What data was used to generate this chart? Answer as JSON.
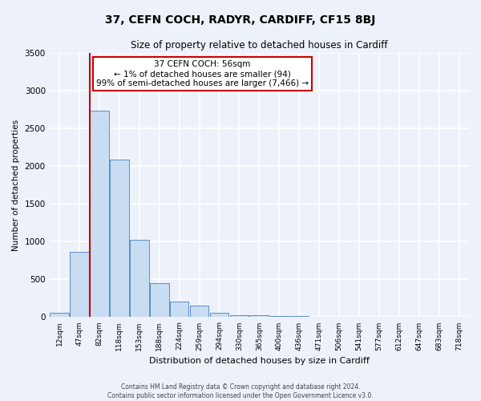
{
  "title": "37, CEFN COCH, RADYR, CARDIFF, CF15 8BJ",
  "subtitle": "Size of property relative to detached houses in Cardiff",
  "xlabel": "Distribution of detached houses by size in Cardiff",
  "ylabel": "Number of detached properties",
  "bin_labels": [
    "12sqm",
    "47sqm",
    "82sqm",
    "118sqm",
    "153sqm",
    "188sqm",
    "224sqm",
    "259sqm",
    "294sqm",
    "330sqm",
    "365sqm",
    "400sqm",
    "436sqm",
    "471sqm",
    "506sqm",
    "541sqm",
    "577sqm",
    "612sqm",
    "647sqm",
    "683sqm",
    "718sqm"
  ],
  "bar_heights": [
    60,
    860,
    2730,
    2080,
    1020,
    455,
    205,
    148,
    60,
    30,
    28,
    20,
    15,
    5,
    0,
    0,
    0,
    0,
    0,
    0,
    0
  ],
  "bar_color": "#c9ddf2",
  "bar_edge_color": "#5b8ec9",
  "annotation_line1": "37 CEFN COCH: 56sqm",
  "annotation_line2": "← 1% of detached houses are smaller (94)",
  "annotation_line3": "99% of semi-detached houses are larger (7,466) →",
  "annotation_box_color": "#ffffff",
  "annotation_box_edge": "#cc0000",
  "vline_color": "#cc0000",
  "vline_x": 1.5,
  "ylim": [
    0,
    3500
  ],
  "yticks": [
    0,
    500,
    1000,
    1500,
    2000,
    2500,
    3000,
    3500
  ],
  "footer1": "Contains HM Land Registry data © Crown copyright and database right 2024.",
  "footer2": "Contains public sector information licensed under the Open Government Licence v3.0.",
  "bg_color": "#edf2fa",
  "plot_bg_color": "#edf2fa",
  "grid_color": "#ffffff"
}
